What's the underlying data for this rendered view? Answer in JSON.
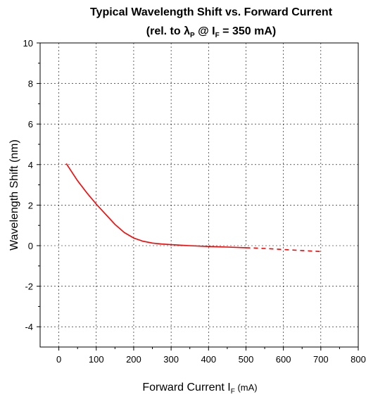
{
  "chart_data": {
    "type": "line",
    "title": {
      "line1": "Typical Wavelength Shift vs. Forward Current",
      "line2_prefix": "(rel. to ",
      "lambda": "λ",
      "lambda_sub": "P",
      "line2_mid": " @ I",
      "i_sub": "F",
      "line2_suffix": " = 350 mA)"
    },
    "xlabel": {
      "main": "Forward Current I",
      "sub": "F",
      "unit": " (mA)"
    },
    "ylabel": "Wavelength Shift (nm)",
    "xlim": [
      -50,
      800
    ],
    "ylim": [
      -5,
      10
    ],
    "x_ticks": [
      "0",
      "100",
      "200",
      "300",
      "400",
      "500",
      "600",
      "700",
      "800"
    ],
    "y_ticks": [
      "-4",
      "-2",
      "0",
      "2",
      "4",
      "6",
      "8",
      "10"
    ],
    "grid": true,
    "line_color": "#ff0000",
    "series": [
      {
        "style": "solid",
        "x": [
          20,
          50,
          75,
          100,
          125,
          150,
          175,
          200,
          225,
          250,
          275,
          300,
          350,
          400,
          450,
          500
        ],
        "y": [
          4.05,
          3.2,
          2.6,
          2.05,
          1.55,
          1.05,
          0.65,
          0.38,
          0.22,
          0.13,
          0.08,
          0.05,
          0.0,
          -0.04,
          -0.07,
          -0.1
        ]
      },
      {
        "style": "dashed",
        "x": [
          500,
          550,
          600,
          650,
          700
        ],
        "y": [
          -0.1,
          -0.14,
          -0.19,
          -0.24,
          -0.29
        ]
      }
    ]
  }
}
